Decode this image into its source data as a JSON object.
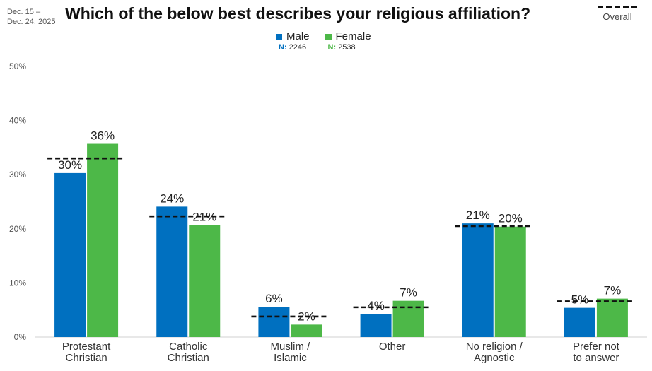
{
  "header": {
    "date_line1": "Dec. 15 –",
    "date_line2": "Dec. 24, 2025",
    "title": "Which of the below best describes your religious affiliation?",
    "overall_label": "Overall"
  },
  "legend": {
    "male": {
      "label": "Male",
      "n_prefix": "N:",
      "n_value": "2246",
      "color": "#0070c0"
    },
    "female": {
      "label": "Female",
      "n_prefix": "N:",
      "n_value": "2538",
      "color": "#4db848"
    }
  },
  "chart_data": {
    "type": "bar",
    "title": "Which of the below best describes your religious affiliation?",
    "categories": [
      [
        "Protestant",
        "Christian"
      ],
      [
        "Catholic",
        "Christian"
      ],
      [
        "Muslim /",
        "Islamic"
      ],
      [
        "Other"
      ],
      [
        "No religion /",
        "Agnostic"
      ],
      [
        "Prefer not",
        "to answer"
      ]
    ],
    "series": [
      {
        "name": "Male",
        "color": "#0070c0",
        "values": [
          30,
          24,
          6,
          4,
          21,
          5
        ],
        "labels": [
          "30%",
          "24%",
          "6%",
          "4%",
          "21%",
          "5%"
        ],
        "exact": [
          30.3,
          24.1,
          5.6,
          4.3,
          21.0,
          5.4
        ]
      },
      {
        "name": "Female",
        "color": "#4db848",
        "values": [
          36,
          21,
          2,
          7,
          20,
          7
        ],
        "labels": [
          "36%",
          "21%",
          "2%",
          "7%",
          "20%",
          "7%"
        ],
        "exact": [
          35.7,
          20.7,
          2.3,
          6.7,
          20.4,
          7.1
        ]
      }
    ],
    "overall": [
      33.0,
      22.3,
      3.8,
      5.5,
      20.5,
      6.6
    ],
    "ylim": [
      0,
      50
    ],
    "yticks": [
      "0%",
      "10%",
      "20%",
      "30%",
      "40%",
      "50%"
    ],
    "grid": false
  }
}
